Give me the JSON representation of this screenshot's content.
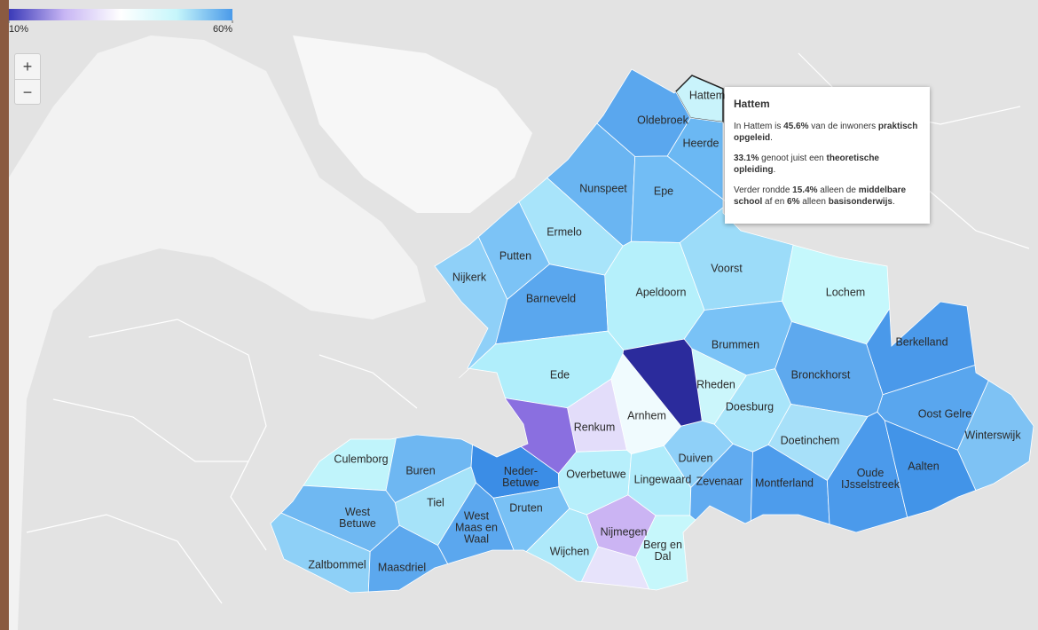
{
  "legend": {
    "min": {
      "value": 10,
      "label": "10%"
    },
    "max": {
      "value": 60,
      "label": "60%"
    },
    "colors": [
      "#3a3ab8",
      "#c8b6f4",
      "#ffffff",
      "#c6f6fb",
      "#4a9ae9"
    ]
  },
  "zoom": {
    "in": "+",
    "out": "−"
  },
  "regions": [
    {
      "label": [
        "Hattem"
      ],
      "color": "#c9f3fb",
      "highlight": true
    },
    {
      "label": [
        "Oldebroek"
      ],
      "color": "#5aa7ee"
    },
    {
      "label": [
        "Heerde"
      ],
      "color": "#6bb8f3"
    },
    {
      "label": [
        "Nunspeet"
      ],
      "color": "#6ab5f2"
    },
    {
      "label": [
        "Epe"
      ],
      "color": "#72bdf5"
    },
    {
      "label": [
        "Ermelo"
      ],
      "color": "#a8e4fa"
    },
    {
      "label": [
        "Putten"
      ],
      "color": "#7cc3f6"
    },
    {
      "label": [
        "Nijkerk"
      ],
      "color": "#8fd0f8"
    },
    {
      "label": [
        "Barneveld"
      ],
      "color": "#5aa7ee"
    },
    {
      "label": [
        "Apeldoorn"
      ],
      "color": "#b5f0fb"
    },
    {
      "label": [
        "Voorst"
      ],
      "color": "#9cdcf9"
    },
    {
      "label": [
        "Lochem"
      ],
      "color": "#c5f8fc"
    },
    {
      "label": [
        "Berkelland"
      ],
      "color": "#4a99ea"
    },
    {
      "label": [
        "Brummen"
      ],
      "color": "#79c2f6"
    },
    {
      "label": [
        "Ede"
      ],
      "color": "#b0eefb"
    },
    {
      "label": [
        "Rheden"
      ],
      "color": "#cbf6fb"
    },
    {
      "label": [
        "Bronckhorst"
      ],
      "color": "#5ea9ee"
    },
    {
      "label": [
        "Arnhem"
      ],
      "color": "#f0fbfe"
    },
    {
      "label": [
        "Doesburg"
      ],
      "color": "#a9e5fa"
    },
    {
      "label": [
        "Oost Gelre"
      ],
      "color": "#59a6ee"
    },
    {
      "label": [
        "Renkum"
      ],
      "color": "#e3ddfa"
    },
    {
      "label": [
        "Winterswijk"
      ],
      "color": "#7ec2f4"
    },
    {
      "label": [
        "Doetinchem"
      ],
      "color": "#a7e0f9"
    },
    {
      "label": [
        "Culemborg"
      ],
      "color": "#c0f4fb"
    },
    {
      "label": [
        "Buren"
      ],
      "color": "#6eb7f2"
    },
    {
      "label": [
        "Neder-",
        "Betuwe"
      ],
      "color": "#3b8de6"
    },
    {
      "label": [
        "Overbetuwe"
      ],
      "color": "#b7effb"
    },
    {
      "label": [
        "Duiven"
      ],
      "color": "#8fd0f8"
    },
    {
      "label": [
        "Lingewaard"
      ],
      "color": "#b0ecfb"
    },
    {
      "label": [
        "Zevenaar"
      ],
      "color": "#61abf0"
    },
    {
      "label": [
        "Montferland"
      ],
      "color": "#4d9cec"
    },
    {
      "label": [
        "Oude",
        "IJsselstreek"
      ],
      "color": "#4b9aeb"
    },
    {
      "label": [
        "Aalten"
      ],
      "color": "#4294e8"
    },
    {
      "label": [
        "Tiel"
      ],
      "color": "#a6e3f9"
    },
    {
      "label": [
        "West",
        "Betuwe"
      ],
      "color": "#6fb8f2"
    },
    {
      "label": [
        "West",
        "Maas en",
        "Waal"
      ],
      "color": "#5ba7ee"
    },
    {
      "label": [
        "Druten"
      ],
      "color": "#79c1f5"
    },
    {
      "label": [
        "Nijmegen"
      ],
      "color": "#cbb4f3"
    },
    {
      "label": [
        "Wijchen"
      ],
      "color": "#aee9fa"
    },
    {
      "label": [
        "Zaltbommel"
      ],
      "color": "#8ed0f7"
    },
    {
      "label": [
        "Maasdriel"
      ],
      "color": "#5ca8ee"
    },
    {
      "label": [
        "Berg en",
        "Dal"
      ],
      "color": "#c6f7fb"
    },
    {
      "label": null,
      "color": "#2b2b9c"
    },
    {
      "label": null,
      "color": "#8a6fe0"
    },
    {
      "label": null,
      "color": "#e7e3fb"
    }
  ],
  "tooltip": {
    "title": "Hattem",
    "paragraphs": [
      [
        {
          "text": "In Hattem is "
        },
        {
          "text": "45.6%",
          "bold": true
        },
        {
          "text": " van de inwoners "
        },
        {
          "text": "praktisch opgeleid",
          "bold": true
        },
        {
          "text": "."
        }
      ],
      [
        {
          "text": "33.1%",
          "bold": true
        },
        {
          "text": " genoot juist een "
        },
        {
          "text": "theoretische opleiding",
          "bold": true
        },
        {
          "text": "."
        }
      ],
      [
        {
          "text": "Verder rondde "
        },
        {
          "text": "15.4%",
          "bold": true
        },
        {
          "text": " alleen de "
        },
        {
          "text": "middelbare school",
          "bold": true
        },
        {
          "text": " af en "
        },
        {
          "text": "6%",
          "bold": true
        },
        {
          "text": " alleen "
        },
        {
          "text": "basisonderwijs",
          "bold": true
        },
        {
          "text": "."
        }
      ]
    ]
  }
}
